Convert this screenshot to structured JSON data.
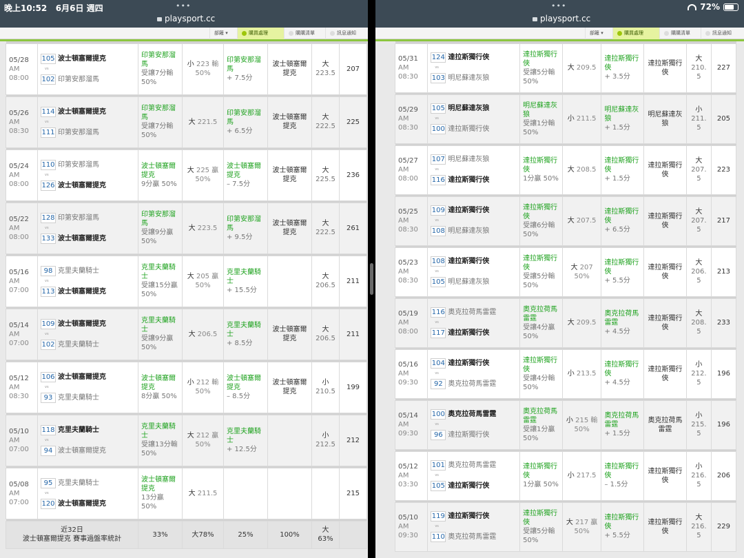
{
  "left": {
    "status_time": "晚上10:52",
    "status_date": "6月6日 週四",
    "dots": "•••",
    "url": "playsport.cc",
    "toolbar": [
      "部籬 ▾",
      "購買處理",
      "購購清單",
      "訊息通知"
    ],
    "rows": [
      {
        "date": "05/28",
        "ampm": "AM",
        "time": "08:00",
        "t1n": "105",
        "t1": "波士頓塞爾提克",
        "t1s": true,
        "t2n": "102",
        "t2": "印第安那溜馬",
        "t2s": false,
        "sp_team": "印第安那溜馬",
        "sp_res": "受讓7分輸",
        "sp_pct": "50%",
        "ou_dir": "小",
        "ou_line": "223",
        "ou_res": "輸",
        "ou_pct": "50%",
        "pk_team": "印第安那溜馬",
        "pk_line": "+ 7.5分",
        "win": "波士頓塞爾提克",
        "res_dir": "大",
        "res_val": "223.5",
        "total": "207"
      },
      {
        "date": "05/26",
        "ampm": "AM",
        "time": "08:30",
        "t1n": "114",
        "t1": "波士頓塞爾提克",
        "t1s": true,
        "t2n": "111",
        "t2": "印第安那溜馬",
        "t2s": false,
        "sp_team": "印第安那溜馬",
        "sp_res": "受讓7分輸",
        "sp_pct": "50%",
        "ou_dir": "大",
        "ou_line": "221.5",
        "ou_res": "",
        "ou_pct": "",
        "pk_team": "印第安那溜馬",
        "pk_line": "+ 6.5分",
        "win": "波士頓塞爾提克",
        "res_dir": "大",
        "res_val": "222.5",
        "total": "225"
      },
      {
        "date": "05/24",
        "ampm": "AM",
        "time": "08:00",
        "t1n": "110",
        "t1": "印第安那溜馬",
        "t1s": false,
        "t2n": "126",
        "t2": "波士頓塞爾提克",
        "t2s": true,
        "sp_team": "波士頓塞爾提克",
        "sp_res": "9分贏 50%",
        "sp_pct": "",
        "ou_dir": "大",
        "ou_line": "225",
        "ou_res": "贏",
        "ou_pct": "50%",
        "pk_team": "波士頓塞爾提克",
        "pk_line": "– 7.5分",
        "win": "波士頓塞爾提克",
        "res_dir": "大",
        "res_val": "225.5",
        "total": "236"
      },
      {
        "date": "05/22",
        "ampm": "AM",
        "time": "08:00",
        "t1n": "128",
        "t1": "印第安那溜馬",
        "t1s": false,
        "t2n": "133",
        "t2": "波士頓塞爾提克",
        "t2s": true,
        "sp_team": "印第安那溜馬",
        "sp_res": "受讓9分贏",
        "sp_pct": "50%",
        "ou_dir": "大",
        "ou_line": "223.5",
        "ou_res": "",
        "ou_pct": "",
        "pk_team": "印第安那溜馬",
        "pk_line": "+ 9.5分",
        "win": "波士頓塞爾提克",
        "res_dir": "大",
        "res_val": "222.5",
        "total": "261"
      },
      {
        "date": "05/16",
        "ampm": "AM",
        "time": "07:00",
        "t1n": "98",
        "t1": "克里夫蘭騎士",
        "t1s": false,
        "t2n": "113",
        "t2": "波士頓塞爾提克",
        "t2s": true,
        "sp_team": "克里夫蘭騎士",
        "sp_res": "受讓15分贏",
        "sp_pct": "50%",
        "ou_dir": "大",
        "ou_line": "205",
        "ou_res": "贏",
        "ou_pct": "50%",
        "pk_team": "克里夫蘭騎士",
        "pk_line": "+ 15.5分",
        "win": "",
        "res_dir": "大",
        "res_val": "206.5",
        "total": "211"
      },
      {
        "date": "05/14",
        "ampm": "AM",
        "time": "07:00",
        "t1n": "109",
        "t1": "波士頓塞爾提克",
        "t1s": true,
        "t2n": "102",
        "t2": "克里夫蘭騎士",
        "t2s": false,
        "sp_team": "克里夫蘭騎士",
        "sp_res": "受讓9分贏",
        "sp_pct": "50%",
        "ou_dir": "大",
        "ou_line": "206.5",
        "ou_res": "",
        "ou_pct": "",
        "pk_team": "克里夫蘭騎士",
        "pk_line": "+ 8.5分",
        "win": "波士頓塞爾提克",
        "res_dir": "大",
        "res_val": "206.5",
        "total": "211"
      },
      {
        "date": "05/12",
        "ampm": "AM",
        "time": "08:30",
        "t1n": "106",
        "t1": "波士頓塞爾提克",
        "t1s": true,
        "t2n": "93",
        "t2": "克里夫蘭騎士",
        "t2s": false,
        "sp_team": "波士頓塞爾提克",
        "sp_res": "8分贏 50%",
        "sp_pct": "",
        "ou_dir": "小",
        "ou_line": "212",
        "ou_res": "輸",
        "ou_pct": "50%",
        "pk_team": "波士頓塞爾提克",
        "pk_line": "– 8.5分",
        "win": "波士頓塞爾提克",
        "res_dir": "小",
        "res_val": "210.5",
        "total": "199"
      },
      {
        "date": "05/10",
        "ampm": "AM",
        "time": "07:00",
        "t1n": "118",
        "t1": "克里夫蘭騎士",
        "t1s": true,
        "t2n": "94",
        "t2": "波士頓塞爾提克",
        "t2s": false,
        "sp_team": "克里夫蘭騎士",
        "sp_res": "受讓13分輸",
        "sp_pct": "50%",
        "ou_dir": "大",
        "ou_line": "212",
        "ou_res": "贏",
        "ou_pct": "50%",
        "pk_team": "克里夫蘭騎士",
        "pk_line": "+ 12.5分",
        "win": "",
        "res_dir": "小",
        "res_val": "212.5",
        "total": "212"
      },
      {
        "date": "05/08",
        "ampm": "AM",
        "time": "07:00",
        "t1n": "95",
        "t1": "克里夫蘭騎士",
        "t1s": false,
        "t2n": "120",
        "t2": "波士頓塞爾提克",
        "t2s": true,
        "sp_team": "波士頓塞爾提克",
        "sp_res": "13分贏 50%",
        "sp_pct": "",
        "ou_dir": "大",
        "ou_line": "211.5",
        "ou_res": "",
        "ou_pct": "",
        "pk_team": "",
        "pk_line": "",
        "win": "",
        "res_dir": "",
        "res_val": "",
        "total": "215"
      }
    ],
    "summary": {
      "label1": "近32日",
      "label2": "波士頓塞爾提克 賽事過盤率統計",
      "c1": "33%",
      "c2": "大78%",
      "c3": "25%",
      "c4": "100%",
      "c5": "大63%"
    }
  },
  "right": {
    "dots": "•••",
    "url": "playsport.cc",
    "battery_text": "72%",
    "battery_level": 0.72,
    "toolbar": [
      "部籬 ▾",
      "購買處理",
      "購購清單",
      "訊息通知"
    ],
    "rows": [
      {
        "date": "05/31",
        "ampm": "AM",
        "time": "08:30",
        "t1n": "124",
        "t1": "達拉斯獨行俠",
        "t1s": true,
        "t2n": "103",
        "t2": "明尼蘇達灰狼",
        "t2s": false,
        "sp_team": "達拉斯獨行俠",
        "sp_res": "受讓5分輸",
        "sp_pct": "50%",
        "ou_dir": "大",
        "ou_line": "209.5",
        "ou_res": "",
        "ou_pct": "",
        "pk_team": "達拉斯獨行俠",
        "pk_line": "+ 3.5分",
        "win": "達拉斯獨行俠",
        "res_dir": "大",
        "res_val": "210.5",
        "total": "227"
      },
      {
        "date": "05/29",
        "ampm": "AM",
        "time": "08:30",
        "t1n": "105",
        "t1": "明尼蘇達灰狼",
        "t1s": true,
        "t2n": "100",
        "t2": "達拉斯獨行俠",
        "t2s": false,
        "sp_team": "明尼蘇達灰狼",
        "sp_res": "受讓1分輸",
        "sp_pct": "50%",
        "ou_dir": "小",
        "ou_line": "211.5",
        "ou_res": "",
        "ou_pct": "",
        "pk_team": "明尼蘇達灰狼",
        "pk_line": "+ 1.5分",
        "win": "明尼蘇達灰狼",
        "res_dir": "小",
        "res_val": "211.5",
        "total": "205"
      },
      {
        "date": "05/27",
        "ampm": "AM",
        "time": "08:00",
        "t1n": "107",
        "t1": "明尼蘇達灰狼",
        "t1s": false,
        "t2n": "116",
        "t2": "達拉斯獨行俠",
        "t2s": true,
        "sp_team": "達拉斯獨行俠",
        "sp_res": "1分贏 50%",
        "sp_pct": "",
        "ou_dir": "大",
        "ou_line": "208.5",
        "ou_res": "",
        "ou_pct": "",
        "pk_team": "達拉斯獨行俠",
        "pk_line": "+ 1.5分",
        "win": "達拉斯獨行俠",
        "res_dir": "大",
        "res_val": "207.5",
        "total": "223"
      },
      {
        "date": "05/25",
        "ampm": "AM",
        "time": "08:30",
        "t1n": "109",
        "t1": "達拉斯獨行俠",
        "t1s": true,
        "t2n": "108",
        "t2": "明尼蘇達灰狼",
        "t2s": false,
        "sp_team": "達拉斯獨行俠",
        "sp_res": "受讓6分輸",
        "sp_pct": "50%",
        "ou_dir": "大",
        "ou_line": "207.5",
        "ou_res": "",
        "ou_pct": "",
        "pk_team": "達拉斯獨行俠",
        "pk_line": "+ 6.5分",
        "win": "達拉斯獨行俠",
        "res_dir": "大",
        "res_val": "207.5",
        "total": "217"
      },
      {
        "date": "05/23",
        "ampm": "AM",
        "time": "08:30",
        "t1n": "108",
        "t1": "達拉斯獨行俠",
        "t1s": true,
        "t2n": "105",
        "t2": "明尼蘇達灰狼",
        "t2s": false,
        "sp_team": "達拉斯獨行俠",
        "sp_res": "受讓5分輸",
        "sp_pct": "50%",
        "ou_dir": "大",
        "ou_line": "207",
        "ou_res": "",
        "ou_pct": "50%",
        "pk_team": "達拉斯獨行俠",
        "pk_line": "+ 5.5分",
        "win": "達拉斯獨行俠",
        "res_dir": "大",
        "res_val": "206.5",
        "total": "213"
      },
      {
        "date": "05/19",
        "ampm": "AM",
        "time": "08:00",
        "t1n": "116",
        "t1": "奧克拉荷馬雷霆",
        "t1s": false,
        "t2n": "117",
        "t2": "達拉斯獨行俠",
        "t2s": true,
        "sp_team": "奧克拉荷馬雷霆",
        "sp_res": "受讓4分贏",
        "sp_pct": "50%",
        "ou_dir": "大",
        "ou_line": "209.5",
        "ou_res": "",
        "ou_pct": "",
        "pk_team": "奧克拉荷馬雷霆",
        "pk_line": "+ 4.5分",
        "win": "達拉斯獨行俠",
        "res_dir": "大",
        "res_val": "208.5",
        "total": "233"
      },
      {
        "date": "05/16",
        "ampm": "AM",
        "time": "09:30",
        "t1n": "104",
        "t1": "達拉斯獨行俠",
        "t1s": true,
        "t2n": "92",
        "t2": "奧克拉荷馬雷霆",
        "t2s": false,
        "sp_team": "達拉斯獨行俠",
        "sp_res": "受讓4分輸",
        "sp_pct": "50%",
        "ou_dir": "小",
        "ou_line": "213.5",
        "ou_res": "",
        "ou_pct": "",
        "pk_team": "達拉斯獨行俠",
        "pk_line": "+ 4.5分",
        "win": "達拉斯獨行俠",
        "res_dir": "小",
        "res_val": "212.5",
        "total": "196"
      },
      {
        "date": "05/14",
        "ampm": "AM",
        "time": "09:30",
        "t1n": "100",
        "t1": "奧克拉荷馬雷霆",
        "t1s": true,
        "t2n": "96",
        "t2": "達拉斯獨行俠",
        "t2s": false,
        "sp_team": "奧克拉荷馬雷霆",
        "sp_res": "受讓1分贏",
        "sp_pct": "50%",
        "ou_dir": "小",
        "ou_line": "215",
        "ou_res": "輸",
        "ou_pct": "50%",
        "pk_team": "奧克拉荷馬雷霆",
        "pk_line": "+ 1.5分",
        "win": "奧克拉荷馬雷霆",
        "res_dir": "小",
        "res_val": "215.5",
        "total": "196"
      },
      {
        "date": "05/12",
        "ampm": "AM",
        "time": "03:30",
        "t1n": "101",
        "t1": "奧克拉荷馬雷霆",
        "t1s": false,
        "t2n": "105",
        "t2": "達拉斯獨行俠",
        "t2s": true,
        "sp_team": "達拉斯獨行俠",
        "sp_res": "1分贏 50%",
        "sp_pct": "",
        "ou_dir": "小",
        "ou_line": "217.5",
        "ou_res": "",
        "ou_pct": "",
        "pk_team": "達拉斯獨行俠",
        "pk_line": "– 1.5分",
        "win": "達拉斯獨行俠",
        "res_dir": "小",
        "res_val": "216.5",
        "total": "206"
      },
      {
        "date": "05/10",
        "ampm": "AM",
        "time": "09:30",
        "t1n": "119",
        "t1": "達拉斯獨行俠",
        "t1s": true,
        "t2n": "110",
        "t2": "奧克拉荷馬雷霆",
        "t2s": false,
        "sp_team": "達拉斯獨行俠",
        "sp_res": "受讓5分輸",
        "sp_pct": "50%",
        "ou_dir": "大",
        "ou_line": "217",
        "ou_res": "贏",
        "ou_pct": "50%",
        "pk_team": "達拉斯獨行俠",
        "pk_line": "+ 5.5分",
        "win": "達拉斯獨行俠",
        "res_dir": "大",
        "res_val": "216.5",
        "total": "229"
      }
    ]
  }
}
